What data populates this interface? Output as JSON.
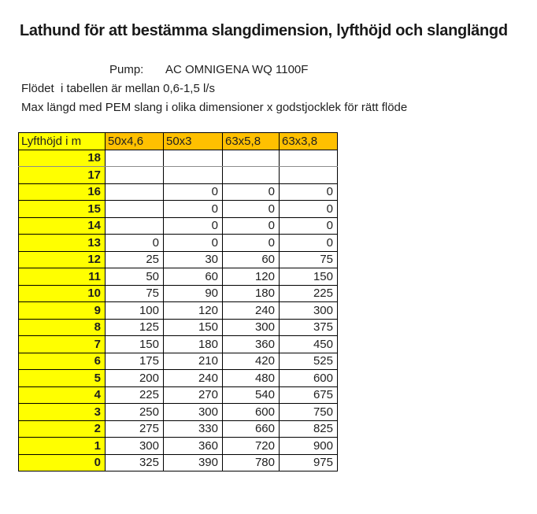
{
  "document": {
    "title": "Lathund för att bestämma slangdimension, lyfthöjd och slanglängd",
    "pump_label": "Pump:",
    "pump_value": "AC OMNIGENA WQ 1100F",
    "note_flow": "Flödet  i tabellen är mellan 0,6-1,5 l/s",
    "note_max_length": "Max längd med PEM slang i olika dimensioner x godstjocklek för rätt flöde"
  },
  "colors": {
    "row_header_bg": "#FFFF00",
    "column_header_bg": "#FFC000",
    "table_border": "#000000",
    "gray_divider": "#8C8C8C",
    "text": "#1F1F1F"
  },
  "chart_data": {
    "type": "table",
    "title": "Max längd med PEM slang i olika dimensioner x godstjocklek för rätt flöde",
    "columns": [
      "Lyfthöjd i m",
      "50x4,6",
      "50x3",
      "63x5,8",
      "63x3,8"
    ],
    "gray_divider_below_row": "18",
    "rows": [
      {
        "lyfthojd": "18",
        "values": [
          "",
          "",
          "",
          ""
        ]
      },
      {
        "lyfthojd": "17",
        "values": [
          "",
          "",
          "",
          ""
        ]
      },
      {
        "lyfthojd": "16",
        "values": [
          "",
          "0",
          "0",
          "0"
        ]
      },
      {
        "lyfthojd": "15",
        "values": [
          "",
          "0",
          "0",
          "0"
        ]
      },
      {
        "lyfthojd": "14",
        "values": [
          "",
          "0",
          "0",
          "0"
        ]
      },
      {
        "lyfthojd": "13",
        "values": [
          "0",
          "0",
          "0",
          "0"
        ]
      },
      {
        "lyfthojd": "12",
        "values": [
          "25",
          "30",
          "60",
          "75"
        ]
      },
      {
        "lyfthojd": "11",
        "values": [
          "50",
          "60",
          "120",
          "150"
        ]
      },
      {
        "lyfthojd": "10",
        "values": [
          "75",
          "90",
          "180",
          "225"
        ]
      },
      {
        "lyfthojd": "9",
        "values": [
          "100",
          "120",
          "240",
          "300"
        ]
      },
      {
        "lyfthojd": "8",
        "values": [
          "125",
          "150",
          "300",
          "375"
        ]
      },
      {
        "lyfthojd": "7",
        "values": [
          "150",
          "180",
          "360",
          "450"
        ]
      },
      {
        "lyfthojd": "6",
        "values": [
          "175",
          "210",
          "420",
          "525"
        ]
      },
      {
        "lyfthojd": "5",
        "values": [
          "200",
          "240",
          "480",
          "600"
        ]
      },
      {
        "lyfthojd": "4",
        "values": [
          "225",
          "270",
          "540",
          "675"
        ]
      },
      {
        "lyfthojd": "3",
        "values": [
          "250",
          "300",
          "600",
          "750"
        ]
      },
      {
        "lyfthojd": "2",
        "values": [
          "275",
          "330",
          "660",
          "825"
        ]
      },
      {
        "lyfthojd": "1",
        "values": [
          "300",
          "360",
          "720",
          "900"
        ]
      },
      {
        "lyfthojd": "0",
        "values": [
          "325",
          "390",
          "780",
          "975"
        ]
      }
    ]
  }
}
